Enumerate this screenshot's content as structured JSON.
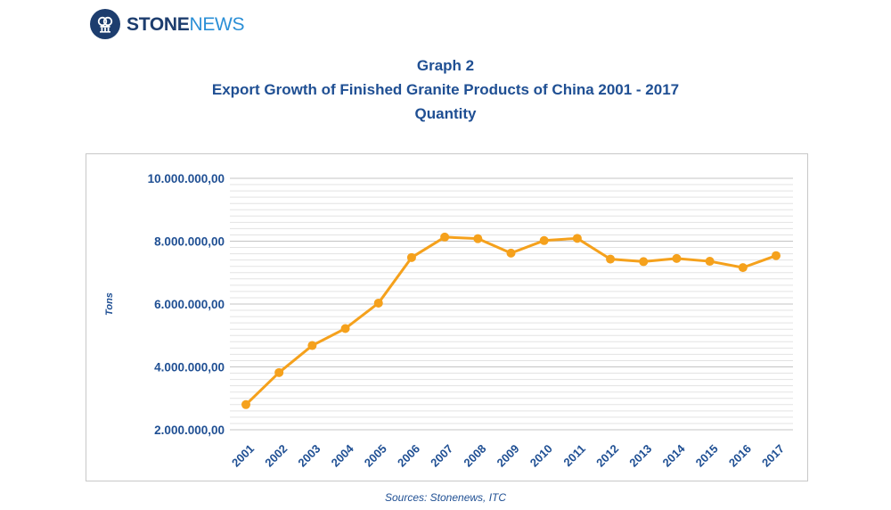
{
  "brand": {
    "name_bold": "STONE",
    "name_regular": "NEWS"
  },
  "titles": {
    "line1": "Graph 2",
    "line2": "Export Growth of  Finished Granite Products of China 2001 - 2017",
    "line3": "Quantity"
  },
  "source": "Sources: Stonenews, ITC",
  "colors": {
    "line": "#f5a11c",
    "text": "#1f4f93",
    "brand": "#1d3d6e"
  },
  "chart_data": {
    "type": "line",
    "title": "Export Growth of  Finished Granite Products of China 2001 - 2017",
    "xlabel": "",
    "ylabel": "Tons",
    "categories": [
      "2001",
      "2002",
      "2003",
      "2004",
      "2005",
      "2006",
      "2007",
      "2008",
      "2009",
      "2010",
      "2011",
      "2012",
      "2013",
      "2014",
      "2015",
      "2016",
      "2017"
    ],
    "series": [
      {
        "values": [
          2800000,
          3820000,
          4680000,
          5220000,
          6030000,
          7480000,
          8130000,
          8080000,
          7620000,
          8020000,
          8090000,
          7430000,
          7350000,
          7450000,
          7360000,
          7160000,
          7540000
        ]
      }
    ],
    "ylim": [
      2000000,
      10000000
    ],
    "yticks": [
      2000000,
      4000000,
      6000000,
      8000000,
      10000000
    ],
    "ytick_labels": [
      "2.000.000,00",
      "4.000.000,00",
      "6.000.000,00",
      "8.000.000,00",
      "10.000.000,00"
    ],
    "grid": true,
    "legend": "none"
  }
}
